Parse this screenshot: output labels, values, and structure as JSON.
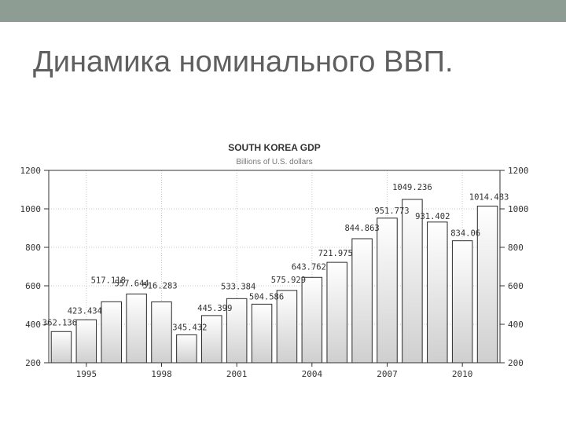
{
  "slide": {
    "title": "Динамика номинального ВВП."
  },
  "chart_data": {
    "type": "bar",
    "title": "SOUTH KOREA GDP",
    "subtitle": "Billions of U.S. dollars",
    "xlabel": "",
    "ylabel": "",
    "x": [
      1994,
      1995,
      1996,
      1997,
      1998,
      1999,
      2000,
      2001,
      2002,
      2003,
      2004,
      2005,
      2006,
      2007,
      2008,
      2009,
      2010,
      2011
    ],
    "values": [
      362.136,
      423.434,
      517.118,
      557.644,
      516.283,
      345.432,
      445.399,
      533.384,
      504.586,
      575.929,
      643.762,
      721.975,
      844.863,
      951.773,
      1049.236,
      931.402,
      834.06,
      1014.483
    ],
    "labels": [
      "362.136",
      "423.434",
      "517.118",
      "557.644",
      "516.283",
      "345.432",
      "445.399",
      "533.384",
      "504.586",
      "575.929",
      "643.762",
      "721.975",
      "844.863",
      "951.773",
      "1049.236",
      "931.402",
      "834.06",
      "1014.483"
    ],
    "x_ticks": [
      1995,
      1998,
      2001,
      2004,
      2007,
      2010
    ],
    "x_tick_labels": [
      "1995",
      "1998",
      "2001",
      "2004",
      "2007",
      "2010"
    ],
    "y_ticks": [
      200,
      400,
      600,
      800,
      1000,
      1200
    ],
    "y_tick_labels": [
      "200",
      "400",
      "600",
      "800",
      "1000",
      "1200"
    ],
    "ylim": [
      200,
      1200
    ],
    "grid": true,
    "colors": {
      "bar_top": "#ffffff",
      "bar_bottom": "#cfcfcf",
      "bar_stroke": "#2a2a2a",
      "grid": "#c8c8c8",
      "text": "#333333"
    }
  }
}
